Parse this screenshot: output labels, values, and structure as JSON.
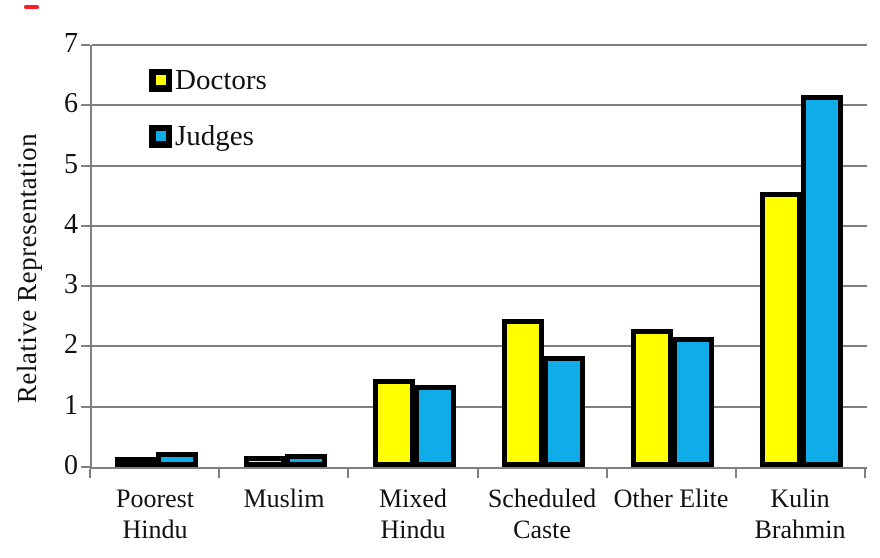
{
  "decorations": {
    "red_dash_color": "#FF1D25"
  },
  "chart_data": {
    "type": "bar",
    "title": "",
    "xlabel": "",
    "ylabel": "Relative Representation",
    "ylim": [
      0,
      7
    ],
    "yticks": [
      0,
      1,
      2,
      3,
      4,
      5,
      6,
      7
    ],
    "grid": true,
    "grid_color": "#808080",
    "axis_color": "#808080",
    "bar_border_color": "#000000",
    "legend_position": "top-left-inside",
    "categories": [
      "Poorest Hindu",
      "Muslim",
      "Mixed Hindu",
      "Scheduled Caste",
      "Other Elite",
      "Kulin Brahmin"
    ],
    "category_label_lines": [
      [
        "Poorest",
        "Hindu"
      ],
      [
        "Muslim"
      ],
      [
        "Mixed",
        "Hindu"
      ],
      [
        "Scheduled",
        "Caste"
      ],
      [
        "Other Elite"
      ],
      [
        "Kulin",
        "Brahmin"
      ]
    ],
    "series": [
      {
        "name": "Doctors",
        "color": "#FFFF00",
        "values": [
          0.07,
          0.1,
          1.38,
          2.37,
          2.21,
          4.48
        ]
      },
      {
        "name": "Judges",
        "color": "#10ACE7",
        "values": [
          0.17,
          0.13,
          1.28,
          1.76,
          2.08,
          6.08
        ]
      }
    ]
  }
}
